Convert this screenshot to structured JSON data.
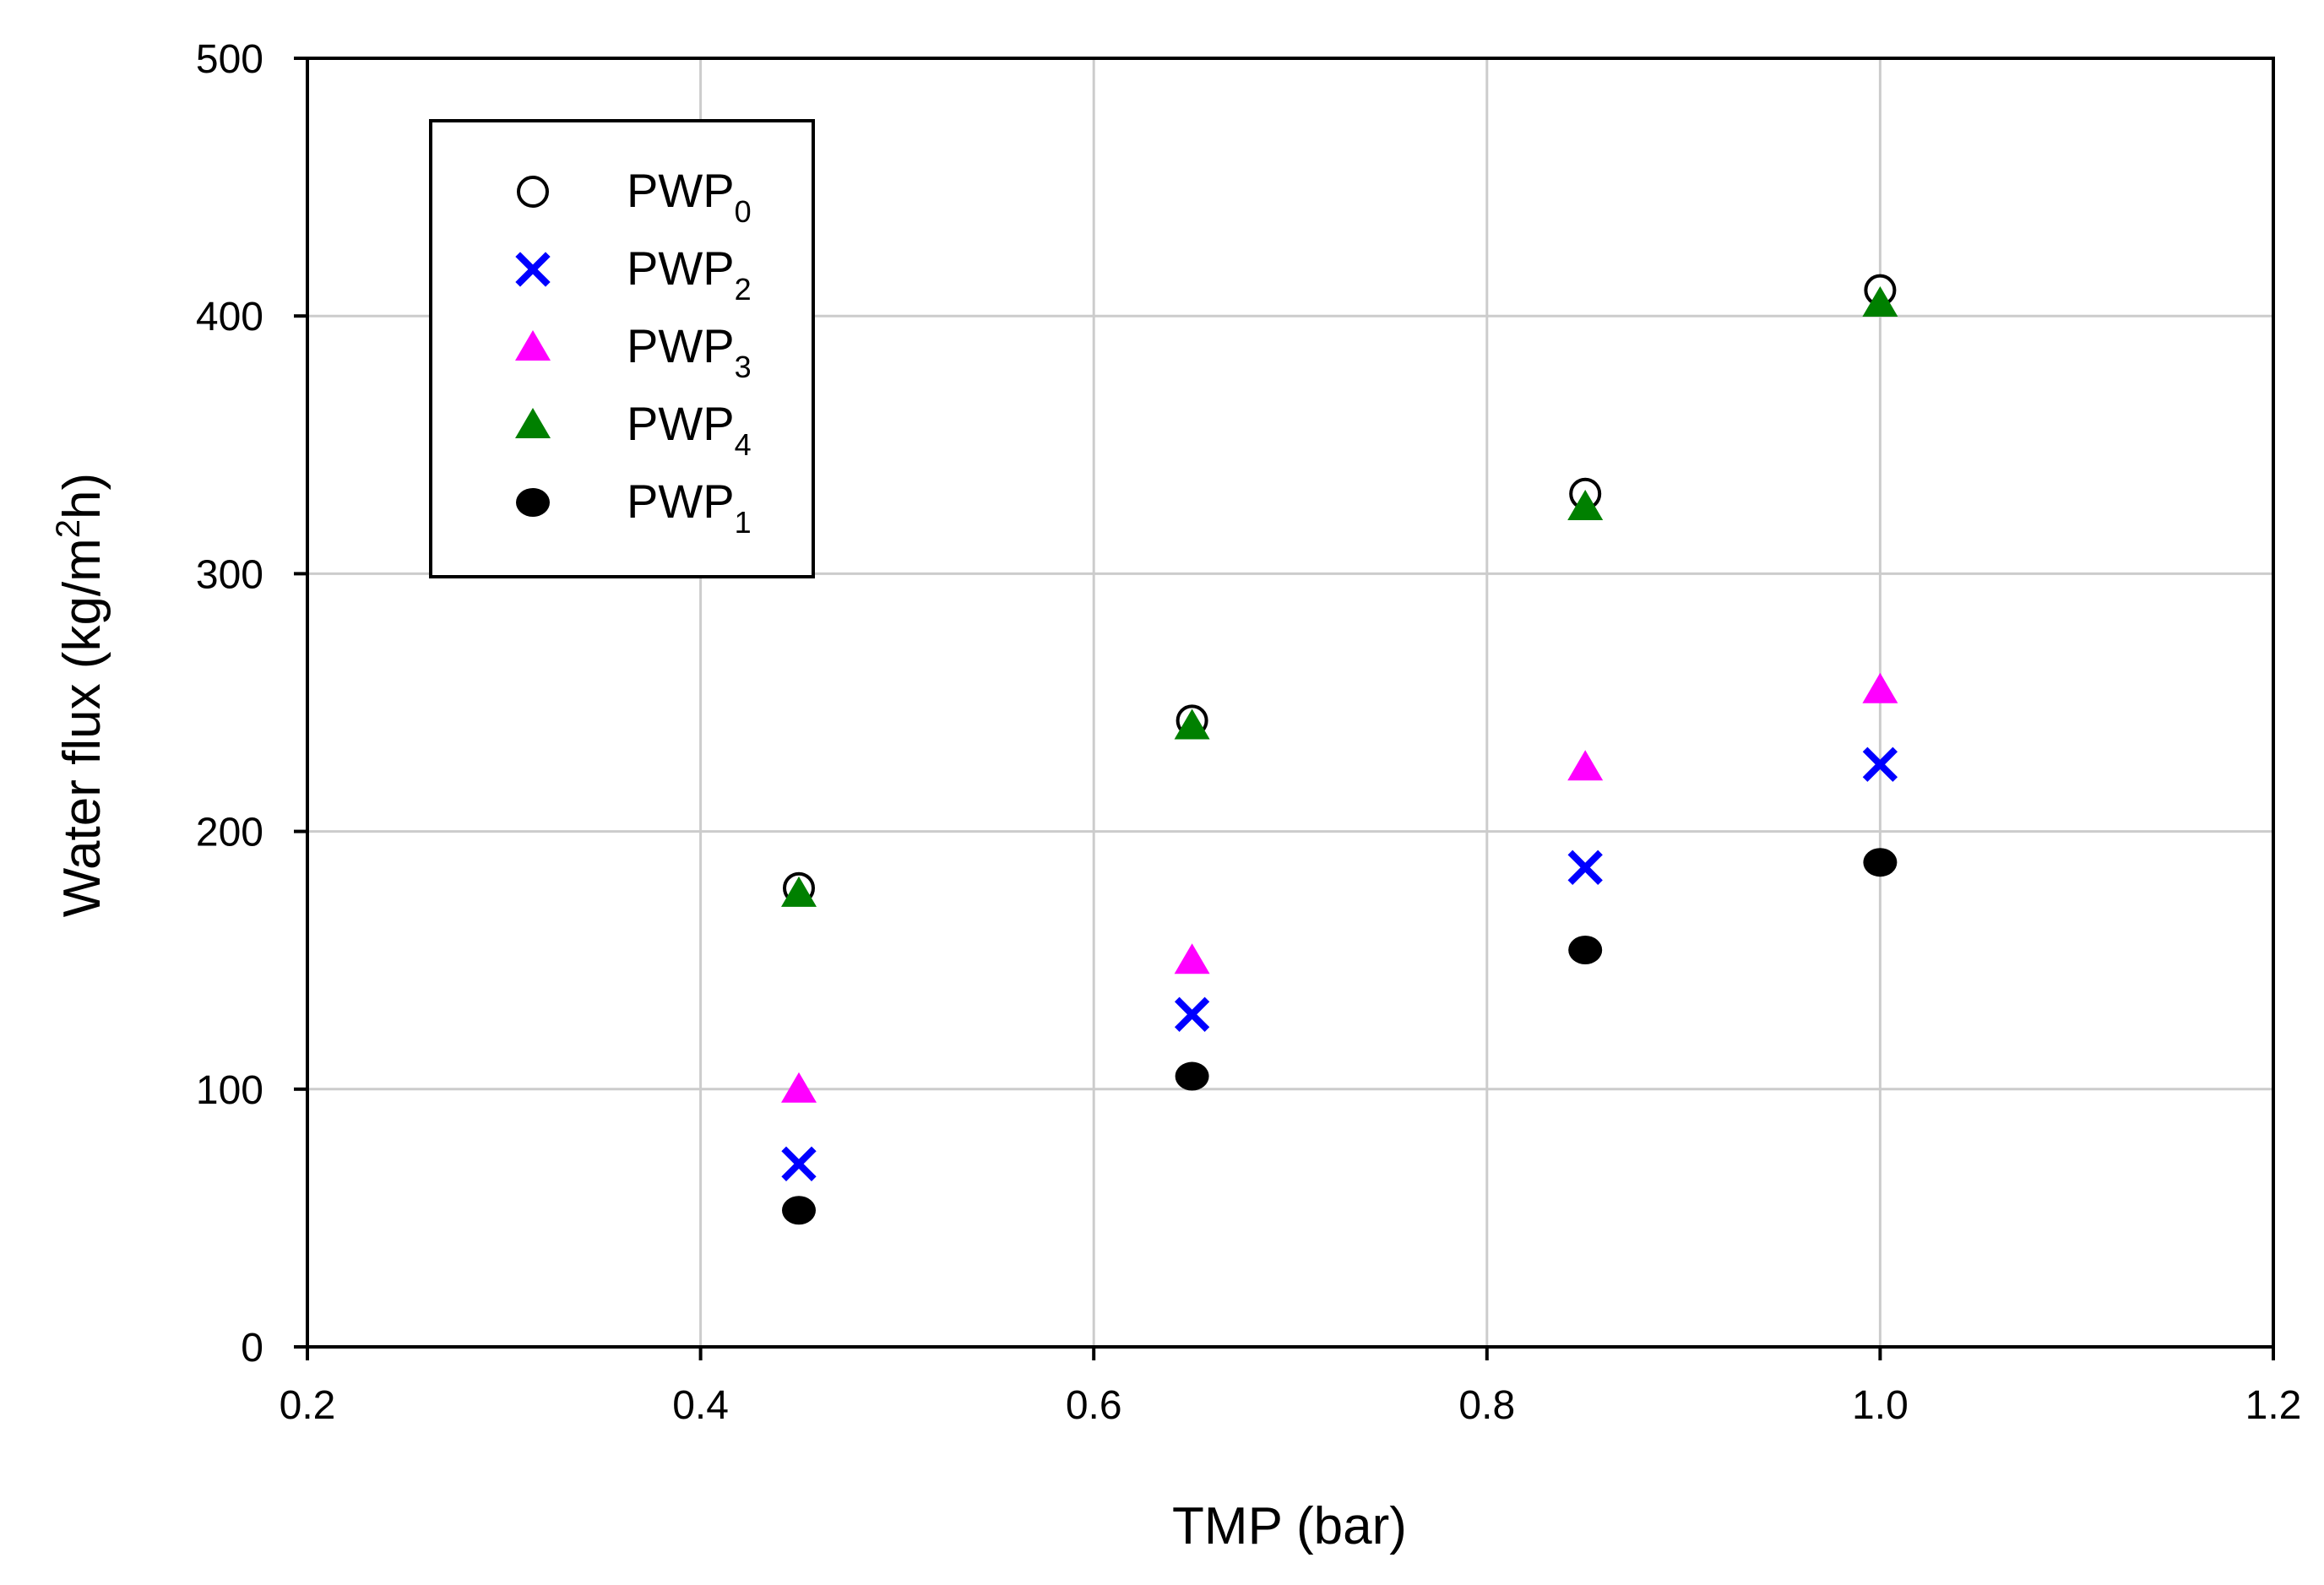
{
  "chart_data": {
    "type": "scatter",
    "xlabel": "TMP (bar)",
    "ylabel": "Water flux (kg/m²h)",
    "ylabel_parts": {
      "pre": "Water flux (kg/m",
      "sup": "2",
      "post": "h)"
    },
    "xlim": [
      0.2,
      1.2
    ],
    "ylim": [
      0,
      500
    ],
    "xticks": [
      0.2,
      0.4,
      0.6,
      0.8,
      1.0,
      1.2
    ],
    "xtick_labels": [
      "0.2",
      "0.4",
      "0.6",
      "0.8",
      "1.0",
      "1.2"
    ],
    "yticks": [
      0,
      100,
      200,
      300,
      400,
      500
    ],
    "ytick_labels": [
      "0",
      "100",
      "200",
      "300",
      "400",
      "500"
    ],
    "grid": true,
    "legend_position": "top-left",
    "x": [
      0.45,
      0.65,
      0.85,
      1.0
    ],
    "series": [
      {
        "name": "PWP",
        "subscript": "0",
        "marker": "open-circle",
        "color": "#000000",
        "values": [
          178,
          243,
          331,
          410
        ]
      },
      {
        "name": "PWP",
        "subscript": "2",
        "marker": "x",
        "color": "#0000ff",
        "values": [
          71,
          129,
          186,
          226
        ]
      },
      {
        "name": "PWP",
        "subscript": "3",
        "marker": "triangle",
        "color": "#ff00ff",
        "values": [
          100,
          150,
          225,
          255
        ]
      },
      {
        "name": "PWP",
        "subscript": "4",
        "marker": "triangle",
        "color": "#008000",
        "values": [
          176,
          241,
          326,
          405
        ]
      },
      {
        "name": "PWP",
        "subscript": "1",
        "marker": "filled-circle",
        "color": "#000000",
        "values": [
          53,
          105,
          154,
          188
        ]
      }
    ]
  }
}
